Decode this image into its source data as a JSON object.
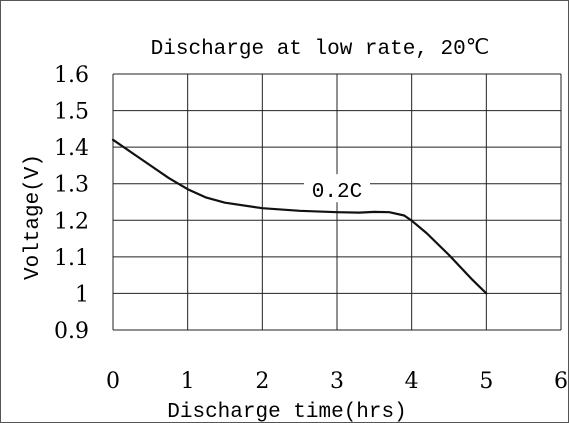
{
  "chart_data": {
    "type": "line",
    "title": "Discharge at low rate, 20℃",
    "xlabel": "Discharge time(hrs)",
    "ylabel": "Voltage(V)",
    "xlim": [
      0,
      6
    ],
    "ylim": [
      0.9,
      1.6
    ],
    "x_ticks": [
      "0",
      "1",
      "2",
      "3",
      "4",
      "5",
      "6"
    ],
    "y_ticks": [
      "1.6",
      "1.5",
      "1.4",
      "1.3",
      "1.2",
      "1.1",
      "1",
      "0.9"
    ],
    "grid": true,
    "colors": {
      "line": "#111111",
      "grid": "#222222"
    },
    "series": [
      {
        "name": "0.2C",
        "x": [
          0,
          0.25,
          0.5,
          0.75,
          1.0,
          1.25,
          1.5,
          2.0,
          2.5,
          3.0,
          3.3,
          3.5,
          3.7,
          3.9,
          4.0,
          4.2,
          4.5,
          4.8,
          5.0
        ],
        "y": [
          1.42,
          1.385,
          1.35,
          1.315,
          1.285,
          1.262,
          1.248,
          1.233,
          1.226,
          1.222,
          1.221,
          1.223,
          1.222,
          1.213,
          1.199,
          1.165,
          1.105,
          1.04,
          1.0
        ]
      }
    ]
  }
}
